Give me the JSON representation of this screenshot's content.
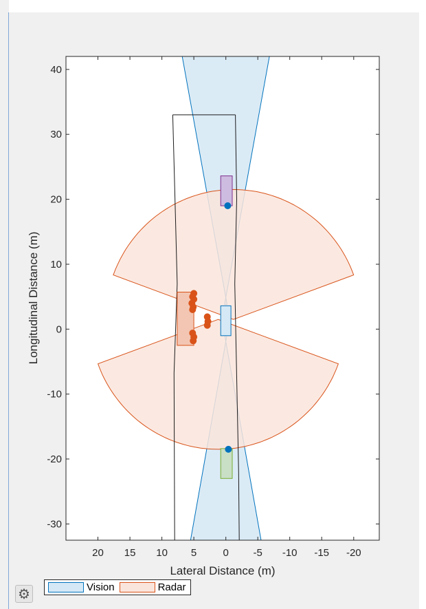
{
  "chart_data": {
    "type": "scatter",
    "title": "",
    "xlabel": "Lateral Distance (m)",
    "ylabel": "Longitudinal Distance (m)",
    "xlim": [
      25,
      -24
    ],
    "ylim": [
      -32.5,
      42
    ],
    "x_direction": "reversed",
    "grid": false,
    "x_ticks": [
      20,
      15,
      10,
      5,
      0,
      -5,
      -10,
      -15,
      -20
    ],
    "y_ticks": [
      40,
      30,
      20,
      10,
      0,
      -10,
      -20,
      -30
    ],
    "legend_position": "bottom-left, outside",
    "series": [
      {
        "name": "Vision",
        "kind": "coverage-area",
        "color": "#0072BD",
        "fill": "#D5E8F5",
        "polygons": [
          [
            [
              0.2,
              3.8
            ],
            [
              -7,
              43
            ],
            [
              7,
              43
            ],
            [
              -0.2,
              3.8
            ]
          ],
          [
            [
              0.2,
              -0.8
            ],
            [
              -5.6,
              -33
            ],
            [
              5.6,
              -33
            ],
            [
              -0.2,
              -0.8
            ]
          ]
        ]
      },
      {
        "name": "Radar",
        "kind": "coverage-area",
        "color": "#D95319",
        "fill": "#FAE5DC",
        "polygons": [
          {
            "origin": [
              1.2,
              1.5
            ],
            "radius": 20,
            "angle_from_deg": 110,
            "angle_to_deg": 250
          },
          {
            "origin": [
              -1.2,
              1.5
            ],
            "radius": 20,
            "angle_from_deg": -70,
            "angle_to_deg": 70
          }
        ]
      }
    ],
    "lane_lines": [
      [
        [
          8.3,
          33
        ],
        [
          8.0,
          22
        ],
        [
          7.6,
          7
        ],
        [
          8.1,
          -6.8
        ],
        [
          8.0,
          -32.5
        ]
      ],
      [
        [
          -1.5,
          33
        ],
        [
          -1.7,
          20
        ],
        [
          -1.4,
          7
        ],
        [
          -2.0,
          -22
        ],
        [
          -2.1,
          -32.5
        ]
      ],
      [
        [
          8.3,
          33
        ],
        [
          -1.5,
          33
        ]
      ]
    ],
    "vehicles": [
      {
        "name": "ego",
        "x_range": [
          -0.8,
          0.8
        ],
        "y_range": [
          -1.0,
          3.6
        ],
        "color": "#D5E8F5",
        "edge": "#0072BD"
      },
      {
        "name": "lead",
        "x_range": [
          -1.0,
          0.8
        ],
        "y_range": [
          19.0,
          23.6
        ],
        "color": "#CDBCE0",
        "edge": "#7E2F8E"
      },
      {
        "name": "rear",
        "x_range": [
          -1.0,
          0.8
        ],
        "y_range": [
          -23.0,
          -18.4
        ],
        "color": "#C9DFC6",
        "edge": "#77AC30"
      },
      {
        "name": "side",
        "x_range": [
          5.0,
          7.6
        ],
        "y_range": [
          -2.5,
          5.7
        ],
        "color": "#F3C6B3",
        "edge": "#D95319"
      }
    ],
    "detections": [
      {
        "sensor": "vision",
        "color": "#0072BD",
        "points": [
          [
            -0.3,
            19.0
          ],
          [
            -0.4,
            -18.5
          ]
        ]
      },
      {
        "sensor": "radar",
        "color": "#D95319",
        "points": [
          [
            5.0,
            5.5
          ],
          [
            5.2,
            5.0
          ],
          [
            5.0,
            4.6
          ],
          [
            5.3,
            4.0
          ],
          [
            5.1,
            3.4
          ],
          [
            5.2,
            3.0
          ],
          [
            2.9,
            1.9
          ],
          [
            2.8,
            1.2
          ],
          [
            2.9,
            0.6
          ],
          [
            5.2,
            -0.6
          ],
          [
            5.0,
            -1.2
          ],
          [
            5.1,
            -1.8
          ]
        ]
      }
    ]
  },
  "legend": {
    "vision_label": "Vision",
    "radar_label": "Radar",
    "vision_fill": "#D5E8F5",
    "vision_edge": "#0072BD",
    "radar_fill": "#FAE5DC",
    "radar_edge": "#D95319"
  },
  "toolbar": {
    "settings_icon": "gear-icon",
    "settings_glyph": "⚙"
  }
}
